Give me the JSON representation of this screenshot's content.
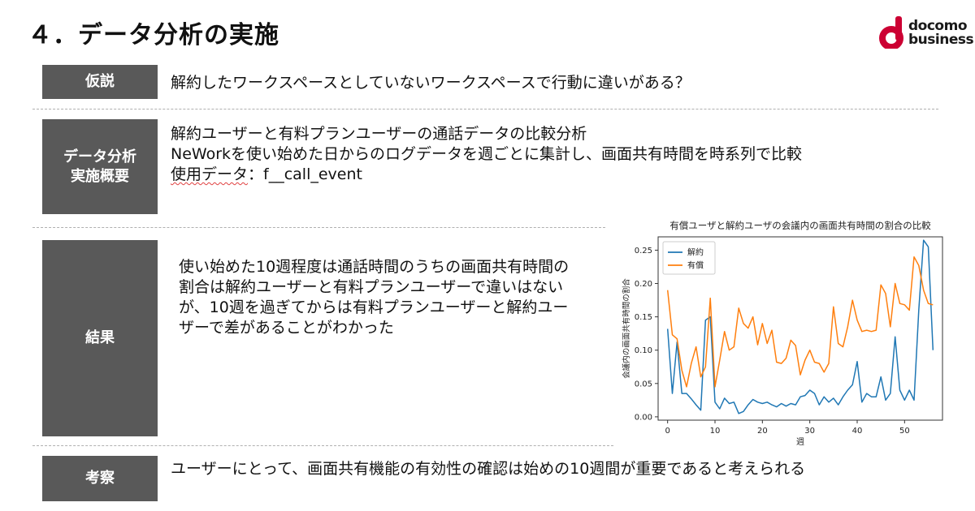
{
  "slide": {
    "title": "４．データ分析の実施",
    "logo_line1": "docomo",
    "logo_line2": "business"
  },
  "rows": {
    "hypothesis": {
      "label": "仮説",
      "text": "解約したワークスペースとしていないワークスペースで行動に違いがある？"
    },
    "overview": {
      "label_line1": "データ分析",
      "label_line2": "実施概要",
      "line1": "解約ユーザーと有料プランユーザーの通話データの比較分析",
      "line2": "NeWorkを使い始めた日からのログデータを週ごとに集計し、画面共有時間を時系列で比較",
      "line3_prefix": "使用データ",
      "line3_suffix": "：f__call_event"
    },
    "result": {
      "label": "結果",
      "line1": "使い始めた10週程度は通話時間のうちの画面共有時間の",
      "line2": "割合は解約ユーザーと有料プランユーザーで違いはない",
      "line3": "が、10週を過ぎてからは有料プランユーザーと解約ユー",
      "line4": "ザーで差があることがわかった"
    },
    "discussion": {
      "label": "考察",
      "text": "ユーザーにとって、画面共有機能の有効性の確認は始めの10週間が重要であると考えられる"
    }
  },
  "colors": {
    "label_bg": "#595959",
    "series_churn": "#1f77b4",
    "series_paid": "#ff7f0e",
    "logo_red": "#cc0033"
  },
  "chart_data": {
    "type": "line",
    "title": "有償ユーザと解約ユーザの会議内の画面共有時間の割合の比較",
    "xlabel": "週",
    "ylabel": "会議内の画面共有時間の割合",
    "xlim": [
      -2,
      58
    ],
    "ylim": [
      -0.005,
      0.27
    ],
    "xticks": [
      "0",
      "10",
      "20",
      "30",
      "40",
      "50"
    ],
    "yticks": [
      "0.00",
      "0.05",
      "0.10",
      "0.15",
      "0.20",
      "0.25"
    ],
    "legend_position": "top-left",
    "x": [
      0,
      1,
      2,
      3,
      4,
      5,
      6,
      7,
      8,
      9,
      10,
      11,
      12,
      13,
      14,
      15,
      16,
      17,
      18,
      19,
      20,
      21,
      22,
      23,
      24,
      25,
      26,
      27,
      28,
      29,
      30,
      31,
      32,
      33,
      34,
      35,
      36,
      37,
      38,
      39,
      40,
      41,
      42,
      43,
      44,
      45,
      46,
      47,
      48,
      49,
      50,
      51,
      52,
      53,
      54,
      55,
      56
    ],
    "series": [
      {
        "name": "解約",
        "color": "#1f77b4",
        "values": [
          0.132,
          0.035,
          0.112,
          0.035,
          0.035,
          0.027,
          0.018,
          0.01,
          0.145,
          0.15,
          0.022,
          0.012,
          0.028,
          0.02,
          0.022,
          0.005,
          0.008,
          0.018,
          0.026,
          0.022,
          0.02,
          0.022,
          0.018,
          0.015,
          0.02,
          0.016,
          0.02,
          0.018,
          0.03,
          0.032,
          0.04,
          0.035,
          0.018,
          0.03,
          0.022,
          0.028,
          0.018,
          0.03,
          0.04,
          0.048,
          0.083,
          0.022,
          0.035,
          0.03,
          0.03,
          0.06,
          0.025,
          0.035,
          0.12,
          0.04,
          0.025,
          0.04,
          0.025,
          0.16,
          0.265,
          0.255,
          0.1
        ]
      },
      {
        "name": "有償",
        "color": "#ff7f0e",
        "values": [
          0.19,
          0.123,
          0.117,
          0.07,
          0.045,
          0.08,
          0.105,
          0.06,
          0.075,
          0.178,
          0.045,
          0.085,
          0.128,
          0.1,
          0.105,
          0.163,
          0.14,
          0.133,
          0.15,
          0.108,
          0.14,
          0.11,
          0.13,
          0.082,
          0.08,
          0.088,
          0.115,
          0.107,
          0.063,
          0.085,
          0.1,
          0.082,
          0.08,
          0.067,
          0.08,
          0.165,
          0.11,
          0.105,
          0.135,
          0.175,
          0.145,
          0.128,
          0.13,
          0.128,
          0.13,
          0.198,
          0.185,
          0.135,
          0.2,
          0.17,
          0.168,
          0.16,
          0.24,
          0.227,
          0.19,
          0.17,
          0.168
        ]
      }
    ]
  }
}
